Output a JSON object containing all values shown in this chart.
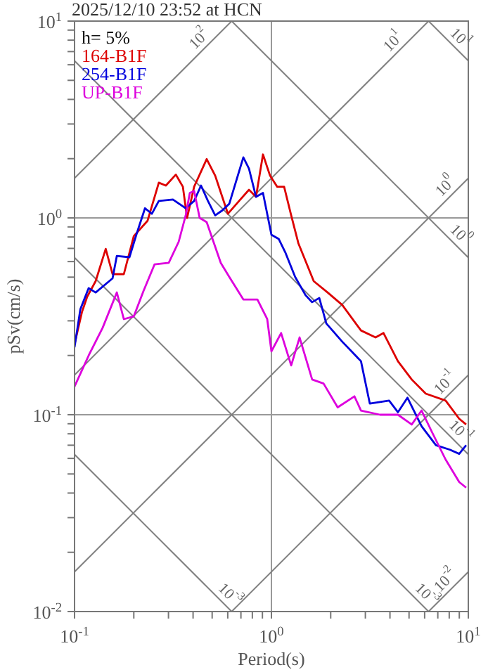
{
  "chart_data": {
    "type": "line",
    "title": "2025/12/10 23:52 at HCN",
    "xlabel": "Period(s)",
    "ylabel": "pSv(cm/s)",
    "log": "xy",
    "grid": true,
    "legend": "top left",
    "xlim": [
      0.1,
      10
    ],
    "ylim": [
      0.01,
      10
    ],
    "xticks": [
      {
        "value": 0.1,
        "label": "10$^{-1}$"
      },
      {
        "value": 0.2,
        "label": null
      },
      {
        "value": 0.3,
        "label": null
      },
      {
        "value": 0.4,
        "label": null
      },
      {
        "value": 0.5,
        "label": null
      },
      {
        "value": 0.6,
        "label": null
      },
      {
        "value": 0.7,
        "label": null
      },
      {
        "value": 0.8,
        "label": null
      },
      {
        "value": 0.9,
        "label": null
      },
      {
        "value": 1,
        "label": "10$^{0}$"
      },
      {
        "value": 2,
        "label": null
      },
      {
        "value": 3,
        "label": null
      },
      {
        "value": 4,
        "label": null
      },
      {
        "value": 5,
        "label": null
      },
      {
        "value": 6,
        "label": null
      },
      {
        "value": 7,
        "label": null
      },
      {
        "value": 8,
        "label": null
      },
      {
        "value": 9,
        "label": null
      },
      {
        "value": 10,
        "label": "10$^{1}$"
      }
    ],
    "yticks": [
      {
        "value": 0.01,
        "label": "10$^{-2}$"
      },
      {
        "value": 0.02,
        "label": null
      },
      {
        "value": 0.03,
        "label": null
      },
      {
        "value": 0.04,
        "label": null
      },
      {
        "value": 0.05,
        "label": null
      },
      {
        "value": 0.06,
        "label": null
      },
      {
        "value": 0.07,
        "label": null
      },
      {
        "value": 0.08,
        "label": null
      },
      {
        "value": 0.09,
        "label": null
      },
      {
        "value": 0.1,
        "label": "10$^{-1}$"
      },
      {
        "value": 0.2,
        "label": null
      },
      {
        "value": 0.3,
        "label": null
      },
      {
        "value": 0.4,
        "label": null
      },
      {
        "value": 0.5,
        "label": null
      },
      {
        "value": 0.6,
        "label": null
      },
      {
        "value": 0.7,
        "label": null
      },
      {
        "value": 0.8,
        "label": null
      },
      {
        "value": 0.9,
        "label": null
      },
      {
        "value": 1,
        "label": "10$^{0}$"
      },
      {
        "value": 2,
        "label": null
      },
      {
        "value": 3,
        "label": null
      },
      {
        "value": 4,
        "label": null
      },
      {
        "value": 5,
        "label": null
      },
      {
        "value": 6,
        "label": null
      },
      {
        "value": 7,
        "label": null
      },
      {
        "value": 8,
        "label": null
      },
      {
        "value": 9,
        "label": null
      },
      {
        "value": 10,
        "label": "10$^{1}$"
      }
    ],
    "annotations": [
      "h= 5%",
      {
        "text": "10$^{2}$",
        "x": 0.468,
        "y": 7.44
      },
      {
        "text": "10$^{1}$",
        "x": 4.54,
        "y": 7.22
      },
      {
        "text": "10$^{1}$",
        "x": 8.34,
        "y": 7.53
      },
      {
        "text": "10$^{0}$",
        "x": 8.34,
        "y": 1.33
      },
      {
        "text": "10$^{0}$",
        "x": 8.34,
        "y": 0.756
      },
      {
        "text": "10$^{-1}$",
        "x": 8.34,
        "y": 0.133
      },
      {
        "text": "10$^{-1}$",
        "x": 8.34,
        "y": 0.0756
      },
      {
        "text": "10$^{-3}$",
        "x": 0.562,
        "y": 0.0112
      },
      {
        "text": "10$^{-3}$",
        "x": 5.62,
        "y": 0.0112
      },
      {
        "text": "10$^{-2}$",
        "x": 8.34,
        "y": 0.0132
      }
    ],
    "series": [
      {
        "color": "#808080",
        "x": [
          0.1,
          0.6283
        ],
        "values": [
          1.5915,
          10
        ]
      },
      {
        "color": "#808080",
        "x": [
          0.1,
          6.2832
        ],
        "values": [
          0.15915,
          10
        ]
      },
      {
        "color": "#808080",
        "x": [
          0.1,
          10
        ],
        "values": [
          0.015915,
          1.5915
        ]
      },
      {
        "color": "#808080",
        "x": [
          0.6283,
          10
        ],
        "values": [
          0.01,
          0.15915
        ]
      },
      {
        "color": "#808080",
        "x": [
          6.2832,
          10
        ],
        "values": [
          0.01,
          0.015915
        ]
      },
      {
        "color": "#808080",
        "x": [
          6.2832,
          10
        ],
        "values": [
          10,
          6.2832
        ]
      },
      {
        "color": "#808080",
        "x": [
          0.6283,
          10
        ],
        "values": [
          10,
          0.6283
        ]
      },
      {
        "color": "#808080",
        "x": [
          0.1,
          10
        ],
        "values": [
          6.2832,
          0.06283
        ]
      },
      {
        "color": "#808080",
        "x": [
          0.1,
          6.2832
        ],
        "values": [
          0.6283,
          0.01
        ]
      },
      {
        "color": "#808080",
        "x": [
          0.1,
          0.6283
        ],
        "values": [
          0.06283,
          0.01
        ]
      },
      {
        "name": "164-B1F",
        "color": "#dd0000",
        "x": [
          0.1,
          0.109,
          0.116,
          0.128,
          0.144,
          0.156,
          0.178,
          0.2,
          0.235,
          0.268,
          0.291,
          0.327,
          0.355,
          0.373,
          0.405,
          0.469,
          0.518,
          0.601,
          0.685,
          0.769,
          0.835,
          0.906,
          0.984,
          1.07,
          1.16,
          1.26,
          1.37,
          1.64,
          1.93,
          2.29,
          2.85,
          3.38,
          3.71,
          4.39,
          5.16,
          6.08,
          7.67,
          8.99,
          9.75
        ],
        "values": [
          0.228,
          0.332,
          0.398,
          0.477,
          0.696,
          0.518,
          0.518,
          0.808,
          0.968,
          1.51,
          1.46,
          1.66,
          1.44,
          1.0,
          1.44,
          1.99,
          1.64,
          1.05,
          1.22,
          1.39,
          1.28,
          2.1,
          1.64,
          1.44,
          1.44,
          1.03,
          0.744,
          0.477,
          0.418,
          0.361,
          0.268,
          0.247,
          0.26,
          0.187,
          0.151,
          0.128,
          0.118,
          0.0954,
          0.0892
        ]
      },
      {
        "name": "254-B1F",
        "color": "#0000dd",
        "x": [
          0.1,
          0.107,
          0.118,
          0.128,
          0.156,
          0.164,
          0.19,
          0.206,
          0.228,
          0.247,
          0.268,
          0.316,
          0.367,
          0.405,
          0.439,
          0.476,
          0.518,
          0.562,
          0.611,
          0.72,
          0.769,
          0.835,
          0.906,
          1.0,
          1.09,
          1.18,
          1.32,
          1.49,
          1.61,
          1.75,
          1.9,
          2.29,
          2.85,
          3.16,
          3.96,
          4.39,
          4.91,
          5.79,
          6.85,
          8.06,
          8.99,
          9.75
        ],
        "values": [
          0.22,
          0.343,
          0.44,
          0.418,
          0.493,
          0.641,
          0.631,
          0.821,
          1.12,
          1.05,
          1.22,
          1.24,
          1.12,
          1.22,
          1.46,
          1.22,
          1.03,
          1.09,
          1.18,
          2.03,
          1.78,
          1.28,
          1.34,
          0.821,
          0.781,
          0.663,
          0.501,
          0.405,
          0.373,
          0.392,
          0.291,
          0.235,
          0.187,
          0.114,
          0.118,
          0.103,
          0.122,
          0.0874,
          0.07,
          0.0664,
          0.0633,
          0.07
        ]
      },
      {
        "name": "UP-B1F",
        "color": "#dd00dd",
        "x": [
          0.1,
          0.118,
          0.139,
          0.164,
          0.178,
          0.2,
          0.224,
          0.255,
          0.301,
          0.338,
          0.367,
          0.385,
          0.405,
          0.432,
          0.469,
          0.553,
          0.611,
          0.72,
          0.849,
          0.952,
          1.0,
          1.12,
          1.26,
          1.39,
          1.61,
          1.84,
          2.17,
          2.64,
          2.85,
          3.56,
          4.39,
          5.16,
          5.79,
          6.52,
          7.67,
          8.99,
          9.75
        ],
        "values": [
          0.139,
          0.2,
          0.277,
          0.418,
          0.306,
          0.316,
          0.425,
          0.581,
          0.591,
          0.756,
          1.03,
          1.34,
          1.37,
          1.0,
          0.952,
          0.591,
          0.501,
          0.385,
          0.385,
          0.306,
          0.21,
          0.26,
          0.178,
          0.247,
          0.151,
          0.144,
          0.109,
          0.124,
          0.105,
          0.1,
          0.1,
          0.0892,
          0.105,
          0.0821,
          0.0592,
          0.0455,
          0.0426
        ]
      }
    ]
  }
}
